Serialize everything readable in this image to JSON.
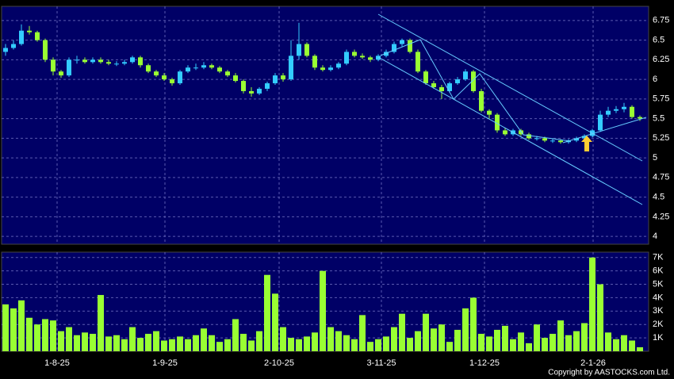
{
  "chart_data": {
    "type": "candlestick",
    "open": [
      6.35,
      6.4,
      6.45,
      6.62,
      6.6,
      6.5,
      6.25,
      6.1,
      6.05,
      6.25,
      6.25,
      6.22,
      6.25,
      6.22,
      6.2,
      6.2,
      6.22,
      6.28,
      6.18,
      6.1,
      6.05,
      6.0,
      5.95,
      6.1,
      6.15,
      6.15,
      6.18,
      6.15,
      6.1,
      6.05,
      5.98,
      5.85,
      5.82,
      5.88,
      5.95,
      6.05,
      6.0,
      6.3,
      6.45,
      6.3,
      6.15,
      6.12,
      6.15,
      6.2,
      6.35,
      6.3,
      6.28,
      6.25,
      6.3,
      6.35,
      6.45,
      6.5,
      6.35,
      6.1,
      5.95,
      5.9,
      5.85,
      5.95,
      6.0,
      6.1,
      5.85,
      5.6,
      5.55,
      5.35,
      5.3,
      5.35,
      5.3,
      5.25,
      5.25,
      5.22,
      5.22,
      5.2,
      5.22,
      5.25,
      5.28,
      5.35,
      5.55,
      5.6,
      5.62,
      5.65,
      5.52
    ],
    "high": [
      6.45,
      6.5,
      6.7,
      6.68,
      6.62,
      6.52,
      6.28,
      6.12,
      6.28,
      6.3,
      6.28,
      6.28,
      6.28,
      6.25,
      6.23,
      6.25,
      6.3,
      6.3,
      6.2,
      6.12,
      6.08,
      6.02,
      6.12,
      6.18,
      6.2,
      6.22,
      6.2,
      6.17,
      6.12,
      6.08,
      6.0,
      5.9,
      5.9,
      5.97,
      6.08,
      6.08,
      6.5,
      6.72,
      6.47,
      6.32,
      6.18,
      6.18,
      6.22,
      6.38,
      6.38,
      6.33,
      6.3,
      6.32,
      6.38,
      6.48,
      6.52,
      6.52,
      6.38,
      6.12,
      5.98,
      5.93,
      5.97,
      6.03,
      6.13,
      6.12,
      5.88,
      5.62,
      5.57,
      5.38,
      5.37,
      5.37,
      5.32,
      5.28,
      5.27,
      5.25,
      5.24,
      5.24,
      5.27,
      5.3,
      5.37,
      5.6,
      5.65,
      5.66,
      5.7,
      5.67,
      5.54
    ],
    "low": [
      6.3,
      6.38,
      6.43,
      6.57,
      6.48,
      6.22,
      6.05,
      6.02,
      6.03,
      6.2,
      6.2,
      6.2,
      6.2,
      6.18,
      6.17,
      6.18,
      6.2,
      6.15,
      6.08,
      6.03,
      5.98,
      5.92,
      5.93,
      6.08,
      6.12,
      6.13,
      6.13,
      6.08,
      6.03,
      5.96,
      5.82,
      5.78,
      5.8,
      5.85,
      5.93,
      5.97,
      5.98,
      6.25,
      6.28,
      6.12,
      6.1,
      6.1,
      6.13,
      6.18,
      6.28,
      6.26,
      6.22,
      6.23,
      6.28,
      6.33,
      6.42,
      6.33,
      6.08,
      5.93,
      5.88,
      5.75,
      5.83,
      5.93,
      5.98,
      5.83,
      5.58,
      5.5,
      5.32,
      5.28,
      5.28,
      5.28,
      5.23,
      5.22,
      5.2,
      5.19,
      5.18,
      5.18,
      5.2,
      5.23,
      5.26,
      5.33,
      5.52,
      5.57,
      5.58,
      5.5,
      5.47
    ],
    "close": [
      6.4,
      6.45,
      6.62,
      6.6,
      6.5,
      6.25,
      6.1,
      6.05,
      6.25,
      6.25,
      6.22,
      6.25,
      6.22,
      6.2,
      6.2,
      6.22,
      6.28,
      6.18,
      6.1,
      6.05,
      6.0,
      5.95,
      6.1,
      6.15,
      6.15,
      6.18,
      6.15,
      6.1,
      6.05,
      5.98,
      5.85,
      5.82,
      5.88,
      5.95,
      6.05,
      6.0,
      6.3,
      6.45,
      6.3,
      6.15,
      6.12,
      6.15,
      6.2,
      6.35,
      6.3,
      6.28,
      6.25,
      6.3,
      6.35,
      6.45,
      6.5,
      6.35,
      6.1,
      5.95,
      5.9,
      5.85,
      5.95,
      6.0,
      6.1,
      5.85,
      5.6,
      5.55,
      5.35,
      5.3,
      5.35,
      5.3,
      5.25,
      5.25,
      5.22,
      5.22,
      5.2,
      5.22,
      5.25,
      5.28,
      5.35,
      5.55,
      5.6,
      5.62,
      5.65,
      5.52,
      5.5
    ],
    "volume": [
      3500,
      3200,
      3800,
      2500,
      2000,
      2400,
      2300,
      1500,
      1800,
      1200,
      1400,
      1300,
      4200,
      1100,
      1200,
      900,
      1800,
      1000,
      1300,
      1500,
      800,
      900,
      1100,
      900,
      1200,
      1700,
      1200,
      700,
      900,
      2400,
      1300,
      800,
      1500,
      5700,
      4300,
      1800,
      1000,
      900,
      1100,
      1400,
      6000,
      1800,
      1500,
      1200,
      900,
      2700,
      700,
      900,
      1100,
      1800,
      2800,
      1000,
      1500,
      2800,
      1700,
      2000,
      700,
      1600,
      3200,
      4000,
      1300,
      1100,
      1600,
      1900,
      900,
      1400,
      600,
      2000,
      1000,
      1300,
      2300,
      1200,
      1500,
      2100,
      7000,
      5000,
      1400,
      900,
      1200,
      800,
      300
    ],
    "up_color": "#33ccff",
    "down_color": "#99ff33",
    "volume_color": "#99ff33",
    "ylim": [
      3.9,
      6.93
    ],
    "yticks": [
      4,
      4.25,
      4.5,
      4.75,
      5,
      5.25,
      5.5,
      5.75,
      6,
      6.25,
      6.5,
      6.75
    ],
    "y2lim": [
      0,
      7400
    ],
    "y2ticks": [
      {
        "value": 1000,
        "label": "1K"
      },
      {
        "value": 2000,
        "label": "2K"
      },
      {
        "value": 3000,
        "label": "3K"
      },
      {
        "value": 4000,
        "label": "4K"
      },
      {
        "value": 5000,
        "label": "5K"
      },
      {
        "value": 6000,
        "label": "6K"
      },
      {
        "value": 7000,
        "label": "7K"
      }
    ],
    "xlim": [
      -0.5,
      81.1
    ],
    "xticks": [
      {
        "value": 6.5,
        "label": "1-8-25"
      },
      {
        "value": 20.1,
        "label": "1-9-25"
      },
      {
        "value": 34.5,
        "label": "2-10-25"
      },
      {
        "value": 47.4,
        "label": "3-11-25"
      },
      {
        "value": 60.4,
        "label": "1-12-25"
      },
      {
        "value": 74.1,
        "label": "2-1-26"
      }
    ],
    "grid": true,
    "copyright": "Copyright by AASTOCKS.com Ltd."
  }
}
